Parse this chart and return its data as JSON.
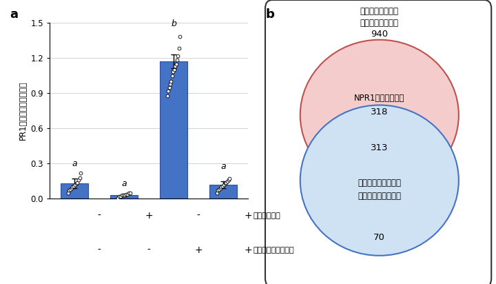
{
  "bar_values": [
    0.13,
    0.03,
    1.17,
    0.12
  ],
  "bar_errors": [
    0.04,
    0.01,
    0.06,
    0.03
  ],
  "bar_color": "#4472C4",
  "bar_edge_color": "#2F4F9E",
  "bar_width": 0.55,
  "bar_positions": [
    0,
    1,
    2,
    3
  ],
  "ylim": [
    0,
    1.5
  ],
  "yticks": [
    0,
    0.3,
    0.6,
    0.9,
    1.2,
    1.5
  ],
  "ylabel": "PR1遣伝子の相対発現量",
  "sig_labels": [
    "a",
    "a",
    "b",
    "a"
  ],
  "sig_offsets": [
    0.09,
    0.05,
    0.22,
    0.09
  ],
  "tenoxi_row": [
    "-",
    "+",
    "-",
    "+"
  ],
  "tomato_row": [
    "-",
    "-",
    "+",
    "+"
  ],
  "tenoxi_label": "テノキシカム",
  "tomato_label": "トマト斑葉細菌病菌",
  "panel_a_label": "a",
  "panel_b_label": "b",
  "dot_data_bar0": [
    0.05,
    0.07,
    0.08,
    0.09,
    0.1,
    0.11,
    0.12,
    0.13,
    0.14,
    0.16,
    0.18,
    0.22
  ],
  "dot_data_bar1": [
    0.01,
    0.02,
    0.02,
    0.03,
    0.03,
    0.03,
    0.04,
    0.04,
    0.05,
    0.05
  ],
  "dot_data_bar2": [
    0.88,
    0.92,
    0.95,
    0.98,
    1.0,
    1.05,
    1.08,
    1.1,
    1.13,
    1.15,
    1.18,
    1.22,
    1.28,
    1.38
  ],
  "dot_data_bar3": [
    0.05,
    0.07,
    0.08,
    0.09,
    0.1,
    0.11,
    0.12,
    0.13,
    0.14,
    0.15,
    0.16,
    0.17
  ],
  "venn_circle1_color_fill": "#F4CCCC",
  "venn_circle1_color_edge": "#C0504D",
  "venn_circle2_color_fill": "#CFE2F3",
  "venn_circle2_color_edge": "#4472C4",
  "venn_label_top_line1": "サリチル酸で発現",
  "venn_label_top_line2": "が上昇する遣伝子",
  "venn_number_top": "940",
  "venn_label_circle1": "NPR1依存性遣伝子",
  "venn_number_circle1": "318",
  "venn_number_intersect": "313",
  "venn_label_circle2_line1": "テノキシカムで発現",
  "venn_label_circle2_line2": "が抑制される遣伝子",
  "venn_number_circle2": "70",
  "background_color": "#ffffff"
}
